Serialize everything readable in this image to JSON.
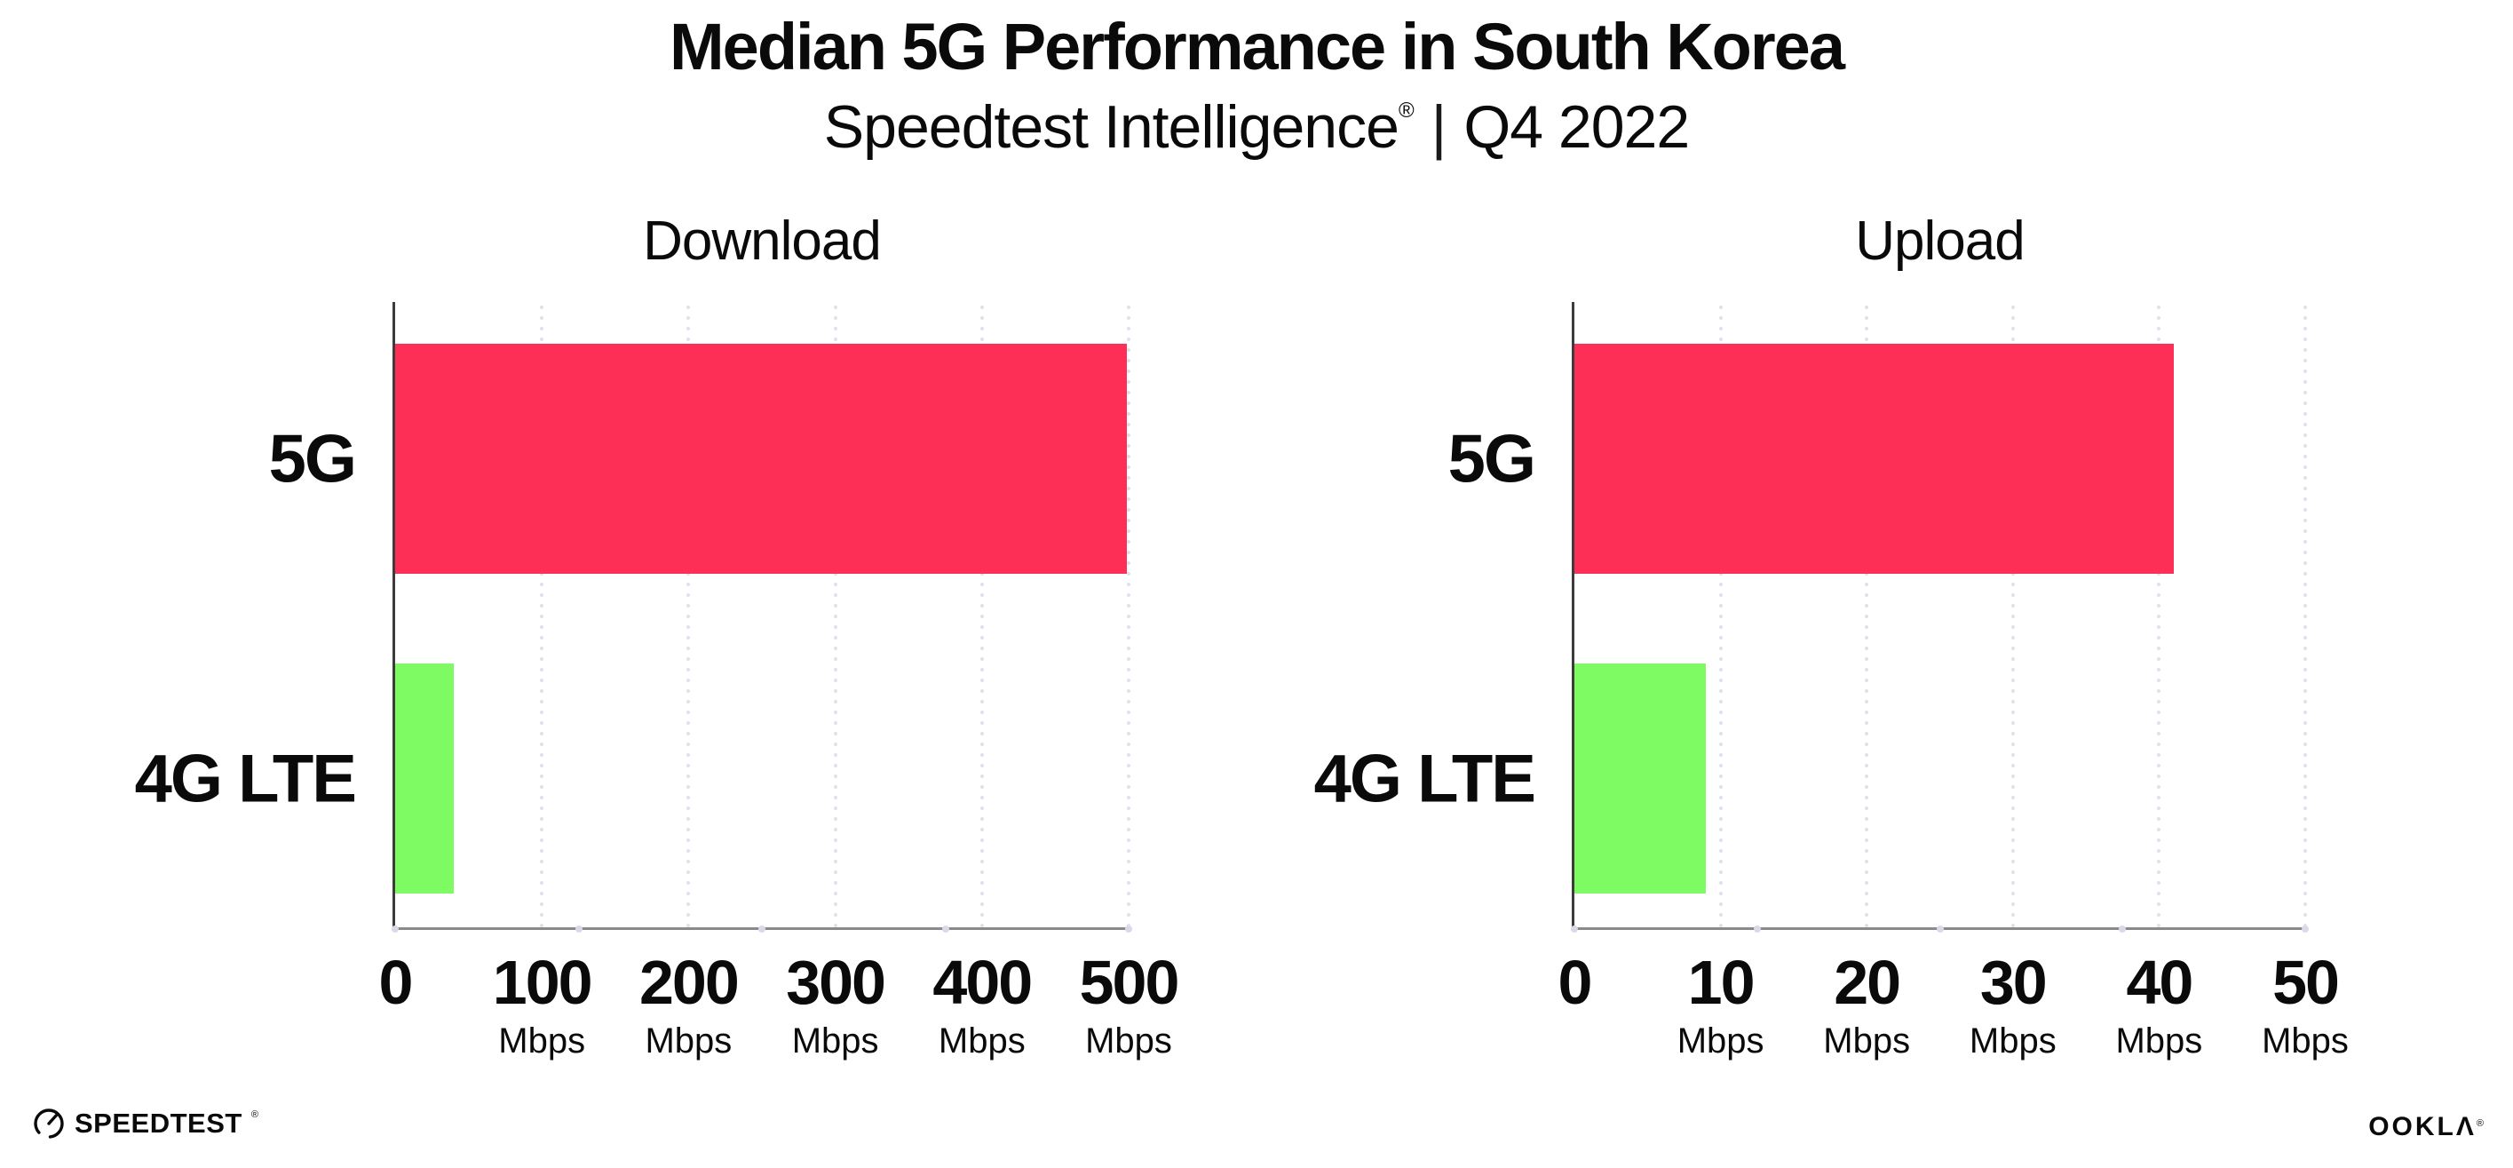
{
  "header": {
    "title": "Median 5G Performance in South Korea",
    "subtitle": {
      "brand": "Speedtest Intelligence",
      "registered": "®",
      "separator": "|",
      "period": "Q4 2022"
    }
  },
  "colors": {
    "bar_5g": "#fd2f57",
    "bar_4g_lte": "#7efb62",
    "gridline": "#e2e2ef",
    "x_axis": "#8a8a8a",
    "y_axis": "#3c3c3c",
    "text": "#0a0a0a",
    "background": "#ffffff"
  },
  "chart_data": [
    {
      "type": "bar",
      "orientation": "horizontal",
      "title": "Download",
      "categories": [
        "5G",
        "4G LTE"
      ],
      "values": [
        499,
        40
      ],
      "unit": "Mbps",
      "xlim": [
        0,
        500
      ],
      "xticks": [
        0,
        100,
        200,
        300,
        400,
        500
      ],
      "grid": "dotted-vertical",
      "legend": "none",
      "bar_colors": [
        "#fd2f57",
        "#7efb62"
      ]
    },
    {
      "type": "bar",
      "orientation": "horizontal",
      "title": "Upload",
      "categories": [
        "5G",
        "4G LTE"
      ],
      "values": [
        41,
        9
      ],
      "unit": "Mbps",
      "xlim": [
        0,
        50
      ],
      "xticks": [
        0,
        10,
        20,
        30,
        40,
        50
      ],
      "grid": "dotted-vertical",
      "legend": "none",
      "bar_colors": [
        "#fd2f57",
        "#7efb62"
      ]
    }
  ],
  "footer": {
    "speedtest": {
      "label": "SPEEDTEST",
      "registered": "®"
    },
    "ookla": {
      "label": "OOKLΛ",
      "registered": "®"
    }
  }
}
